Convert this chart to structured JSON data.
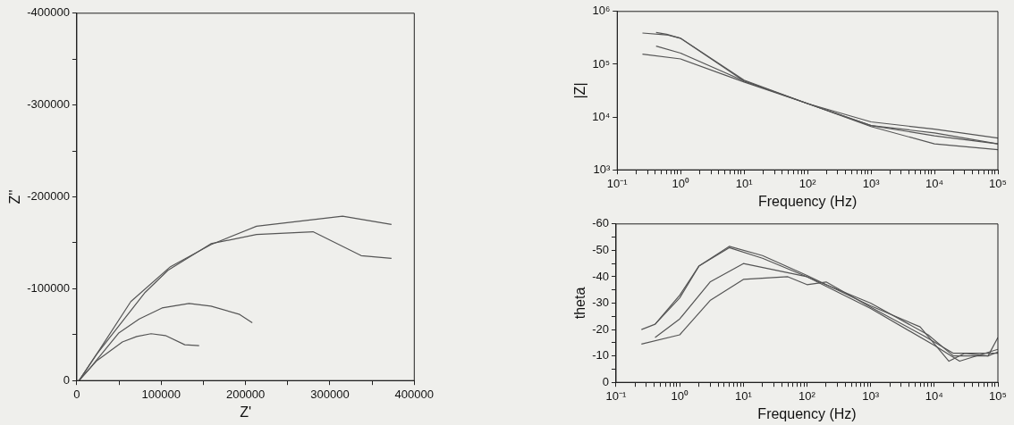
{
  "chart_data": [
    {
      "type": "line",
      "xlabel": "Z'",
      "ylabel": "Z''",
      "xlim": [
        0,
        400000
      ],
      "ylim": [
        0,
        -400000
      ],
      "xticks": [
        0,
        {
          "value": 50000,
          "label": null
        },
        100000,
        {
          "value": 150000,
          "label": null
        },
        200000,
        {
          "value": 250000,
          "label": null
        },
        300000,
        {
          "value": 350000,
          "label": null
        },
        400000
      ],
      "yticks": [
        0,
        {
          "value": -50000,
          "label": null
        },
        -100000,
        {
          "value": -150000,
          "label": null
        },
        -200000,
        {
          "value": -250000,
          "label": null
        },
        -300000,
        {
          "value": -350000,
          "label": null
        },
        -400000
      ],
      "grid": false,
      "legend": false,
      "marker": "none",
      "line_style": "solid",
      "series": [
        {
          "color": "#555555",
          "x": [
            2700,
            23000,
            64000,
            111000,
            159000,
            213000,
            315000,
            373000
          ],
          "values": [
            0,
            -28000,
            -86000,
            -124000,
            -148000,
            -168000,
            -179000,
            -170000
          ]
        },
        {
          "color": "#555555",
          "x": [
            2700,
            23000,
            81000,
            108000,
            159000,
            213000,
            280000,
            337000,
            373000
          ],
          "values": [
            0,
            -28000,
            -96000,
            -120000,
            -149000,
            -159000,
            -162000,
            -136000,
            -133000
          ]
        },
        {
          "color": "#555555",
          "x": [
            2700,
            16000,
            50000,
            74000,
            101000,
            133000,
            159000,
            193000,
            208000
          ],
          "values": [
            0,
            -14000,
            -52000,
            -67000,
            -79000,
            -84000,
            -81000,
            -72000,
            -63000
          ]
        },
        {
          "color": "#555555",
          "x": [
            2700,
            23000,
            54000,
            71000,
            88000,
            105000,
            128000,
            145000
          ],
          "values": [
            0,
            -21000,
            -42000,
            -48000,
            -51000,
            -49000,
            -39000,
            -38000
          ]
        }
      ]
    },
    {
      "type": "line",
      "xlabel": "Frequency (Hz)",
      "ylabel": "|Z|",
      "log": "xy",
      "xlim": [
        0.1,
        100000
      ],
      "ylim": [
        1000,
        1000000
      ],
      "xticks": [
        {
          "value": 0.1,
          "label": "10⁻¹"
        },
        {
          "value": 0.2,
          "label": null
        },
        {
          "value": 0.3,
          "label": null
        },
        {
          "value": 0.4,
          "label": null
        },
        {
          "value": 0.5,
          "label": null
        },
        {
          "value": 0.6,
          "label": null
        },
        {
          "value": 0.7,
          "label": null
        },
        {
          "value": 0.8,
          "label": null
        },
        {
          "value": 0.9,
          "label": null
        },
        {
          "value": 1,
          "label": "10⁰"
        },
        {
          "value": 2,
          "label": null
        },
        {
          "value": 3,
          "label": null
        },
        {
          "value": 4,
          "label": null
        },
        {
          "value": 5,
          "label": null
        },
        {
          "value": 6,
          "label": null
        },
        {
          "value": 7,
          "label": null
        },
        {
          "value": 8,
          "label": null
        },
        {
          "value": 9,
          "label": null
        },
        {
          "value": 10,
          "label": "10¹"
        },
        {
          "value": 20,
          "label": null
        },
        {
          "value": 30,
          "label": null
        },
        {
          "value": 40,
          "label": null
        },
        {
          "value": 50,
          "label": null
        },
        {
          "value": 60,
          "label": null
        },
        {
          "value": 70,
          "label": null
        },
        {
          "value": 80,
          "label": null
        },
        {
          "value": 90,
          "label": null
        },
        {
          "value": 100,
          "label": "10²"
        },
        {
          "value": 200,
          "label": null
        },
        {
          "value": 300,
          "label": null
        },
        {
          "value": 400,
          "label": null
        },
        {
          "value": 500,
          "label": null
        },
        {
          "value": 600,
          "label": null
        },
        {
          "value": 700,
          "label": null
        },
        {
          "value": 800,
          "label": null
        },
        {
          "value": 900,
          "label": null
        },
        {
          "value": 1000,
          "label": "10³"
        },
        {
          "value": 2000,
          "label": null
        },
        {
          "value": 3000,
          "label": null
        },
        {
          "value": 4000,
          "label": null
        },
        {
          "value": 5000,
          "label": null
        },
        {
          "value": 6000,
          "label": null
        },
        {
          "value": 7000,
          "label": null
        },
        {
          "value": 8000,
          "label": null
        },
        {
          "value": 9000,
          "label": null
        },
        {
          "value": 10000,
          "label": "10⁴"
        },
        {
          "value": 20000,
          "label": null
        },
        {
          "value": 30000,
          "label": null
        },
        {
          "value": 40000,
          "label": null
        },
        {
          "value": 50000,
          "label": null
        },
        {
          "value": 60000,
          "label": null
        },
        {
          "value": 70000,
          "label": null
        },
        {
          "value": 80000,
          "label": null
        },
        {
          "value": 90000,
          "label": null
        },
        {
          "value": 100000,
          "label": "10⁵"
        }
      ],
      "yticks": [
        {
          "value": 1000,
          "label": "10³"
        },
        {
          "value": 10000,
          "label": "10⁴"
        },
        {
          "value": 100000,
          "label": "10⁵"
        },
        {
          "value": 1000000,
          "label": "10⁶"
        }
      ],
      "grid": false,
      "legend": false,
      "marker": "none",
      "line_style": "solid",
      "series": [
        {
          "color": "#555555",
          "x": [
            0.25,
            0.6,
            1,
            10,
            100,
            1000,
            10000,
            100000
          ],
          "values": [
            390000,
            360000,
            310000,
            50000,
            18000,
            6900,
            5000,
            3100
          ]
        },
        {
          "color": "#555555",
          "x": [
            0.41,
            0.6,
            1,
            10,
            100,
            1000,
            10000,
            100000
          ],
          "values": [
            400000,
            370000,
            310000,
            48000,
            18000,
            8100,
            5900,
            4000
          ]
        },
        {
          "color": "#555555",
          "x": [
            0.41,
            1,
            10,
            100,
            1000,
            10000,
            100000
          ],
          "values": [
            220000,
            162000,
            48000,
            18000,
            6900,
            4400,
            3100
          ]
        },
        {
          "color": "#555555",
          "x": [
            0.25,
            1,
            10,
            100,
            1000,
            10000,
            100000
          ],
          "values": [
            155000,
            126000,
            46000,
            18000,
            6600,
            3100,
            2400
          ]
        }
      ]
    },
    {
      "type": "line",
      "xlabel": "Frequency (Hz)",
      "ylabel": "theta",
      "log": "x",
      "xlim": [
        0.1,
        100000
      ],
      "ylim": [
        0,
        -60
      ],
      "xticks": [
        {
          "value": 0.1,
          "label": "10⁻¹"
        },
        {
          "value": 0.2,
          "label": null
        },
        {
          "value": 0.3,
          "label": null
        },
        {
          "value": 0.4,
          "label": null
        },
        {
          "value": 0.5,
          "label": null
        },
        {
          "value": 0.6,
          "label": null
        },
        {
          "value": 0.7,
          "label": null
        },
        {
          "value": 0.8,
          "label": null
        },
        {
          "value": 0.9,
          "label": null
        },
        {
          "value": 1,
          "label": "10⁰"
        },
        {
          "value": 2,
          "label": null
        },
        {
          "value": 3,
          "label": null
        },
        {
          "value": 4,
          "label": null
        },
        {
          "value": 5,
          "label": null
        },
        {
          "value": 6,
          "label": null
        },
        {
          "value": 7,
          "label": null
        },
        {
          "value": 8,
          "label": null
        },
        {
          "value": 9,
          "label": null
        },
        {
          "value": 10,
          "label": "10¹"
        },
        {
          "value": 20,
          "label": null
        },
        {
          "value": 30,
          "label": null
        },
        {
          "value": 40,
          "label": null
        },
        {
          "value": 50,
          "label": null
        },
        {
          "value": 60,
          "label": null
        },
        {
          "value": 70,
          "label": null
        },
        {
          "value": 80,
          "label": null
        },
        {
          "value": 90,
          "label": null
        },
        {
          "value": 100,
          "label": "10²"
        },
        {
          "value": 200,
          "label": null
        },
        {
          "value": 300,
          "label": null
        },
        {
          "value": 400,
          "label": null
        },
        {
          "value": 500,
          "label": null
        },
        {
          "value": 600,
          "label": null
        },
        {
          "value": 700,
          "label": null
        },
        {
          "value": 800,
          "label": null
        },
        {
          "value": 900,
          "label": null
        },
        {
          "value": 1000,
          "label": "10³"
        },
        {
          "value": 2000,
          "label": null
        },
        {
          "value": 3000,
          "label": null
        },
        {
          "value": 4000,
          "label": null
        },
        {
          "value": 5000,
          "label": null
        },
        {
          "value": 6000,
          "label": null
        },
        {
          "value": 7000,
          "label": null
        },
        {
          "value": 8000,
          "label": null
        },
        {
          "value": 9000,
          "label": null
        },
        {
          "value": 10000,
          "label": "10⁴"
        },
        {
          "value": 20000,
          "label": null
        },
        {
          "value": 30000,
          "label": null
        },
        {
          "value": 40000,
          "label": null
        },
        {
          "value": 50000,
          "label": null
        },
        {
          "value": 60000,
          "label": null
        },
        {
          "value": 70000,
          "label": null
        },
        {
          "value": 80000,
          "label": null
        },
        {
          "value": 90000,
          "label": null
        },
        {
          "value": 100000,
          "label": "10⁵"
        }
      ],
      "yticks": [
        0,
        {
          "value": -5,
          "label": null
        },
        -10,
        {
          "value": -15,
          "label": null
        },
        -20,
        {
          "value": -25,
          "label": null
        },
        -30,
        {
          "value": -35,
          "label": null
        },
        -40,
        {
          "value": -45,
          "label": null
        },
        -50,
        {
          "value": -55,
          "label": null
        },
        -60
      ],
      "grid": false,
      "legend": false,
      "marker": "none",
      "line_style": "solid",
      "series": [
        {
          "color": "#555555",
          "x": [
            0.41,
            1,
            2,
            6,
            20,
            100,
            1000,
            6000,
            17000,
            30000,
            70000,
            100000
          ],
          "values": [
            -22,
            -32,
            -44,
            -51.5,
            -48,
            -40.5,
            -29,
            -21,
            -8,
            -11,
            -10,
            -11.5
          ]
        },
        {
          "color": "#555555",
          "x": [
            0.25,
            0.41,
            1,
            2,
            6,
            20,
            100,
            1000,
            8000,
            20000,
            50000,
            70000,
            100000
          ],
          "values": [
            -20,
            -22,
            -33,
            -44,
            -51,
            -47,
            -40,
            -30,
            -18,
            -10,
            -10,
            -10,
            -17
          ]
        },
        {
          "color": "#555555",
          "x": [
            0.41,
            1,
            3,
            10,
            100,
            1000,
            10000,
            25000,
            100000
          ],
          "values": [
            -17,
            -24,
            -38,
            -45,
            -40,
            -28,
            -14,
            -8,
            -12.5
          ]
        },
        {
          "color": "#555555",
          "x": [
            0.25,
            1,
            3,
            10,
            50,
            100,
            200,
            1000,
            7000,
            20000,
            100000
          ],
          "values": [
            -14.5,
            -18,
            -31,
            -39,
            -40,
            -37,
            -38,
            -28.5,
            -17.5,
            -11,
            -11
          ]
        }
      ]
    }
  ]
}
